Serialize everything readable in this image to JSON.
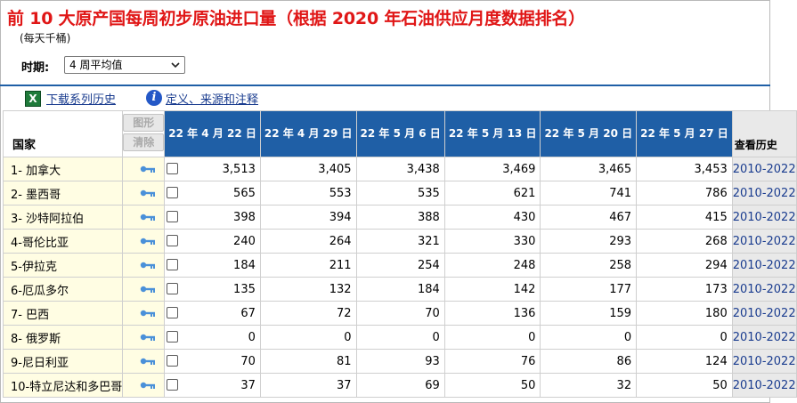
{
  "title": "前 10 大原产国每周初步原油进口量（根据 2020 年石油供应月度数据排名）",
  "unit": "(每天千桶)",
  "period": {
    "label": "时期:",
    "selected": "4 周平均值"
  },
  "links": {
    "download": "下载系列历史",
    "definitions": "定义、来源和注释"
  },
  "table": {
    "country_header": "国家",
    "graph_button": "图形",
    "clear_button": "清除",
    "history_header": "查看历史",
    "dates": [
      "22 年 4 月 22 日",
      "22 年 4 月 29 日",
      "22 年 5 月 6 日",
      "22 年 5 月 13 日",
      "22 年 5 月 20 日",
      "22 年 5 月 27 日"
    ],
    "rows": [
      {
        "country": "1- 加拿大",
        "values": [
          "3,513",
          "3,405",
          "3,438",
          "3,469",
          "3,465",
          "3,453"
        ],
        "history": "2010-2022"
      },
      {
        "country": "2- 墨西哥",
        "values": [
          "565",
          "553",
          "535",
          "621",
          "741",
          "786"
        ],
        "history": "2010-2022"
      },
      {
        "country": "3- 沙特阿拉伯",
        "values": [
          "398",
          "394",
          "388",
          "430",
          "467",
          "415"
        ],
        "history": "2010-2022"
      },
      {
        "country": "4-哥伦比亚",
        "values": [
          "240",
          "264",
          "321",
          "330",
          "293",
          "268"
        ],
        "history": "2010-2022"
      },
      {
        "country": "5-伊拉克",
        "values": [
          "184",
          "211",
          "254",
          "248",
          "258",
          "294"
        ],
        "history": "2010-2022"
      },
      {
        "country": "6-厄瓜多尔",
        "values": [
          "135",
          "132",
          "184",
          "142",
          "177",
          "173"
        ],
        "history": "2010-2022"
      },
      {
        "country": "7- 巴西",
        "values": [
          "67",
          "72",
          "70",
          "136",
          "159",
          "180"
        ],
        "history": "2010-2022"
      },
      {
        "country": "8- 俄罗斯",
        "values": [
          "0",
          "0",
          "0",
          "0",
          "0",
          "0"
        ],
        "history": "2010-2022"
      },
      {
        "country": "9-尼日利亚",
        "values": [
          "70",
          "81",
          "93",
          "76",
          "86",
          "124"
        ],
        "history": "2010-2022"
      },
      {
        "country": "10-特立尼达和多巴哥",
        "values": [
          "37",
          "37",
          "69",
          "50",
          "32",
          "50"
        ],
        "history": "2010-2022"
      }
    ]
  },
  "colors": {
    "title": "#e01717",
    "header_blue": "#1f5fa6",
    "row_yellow": "#fffde3",
    "link_blue": "#1a3c8f"
  }
}
